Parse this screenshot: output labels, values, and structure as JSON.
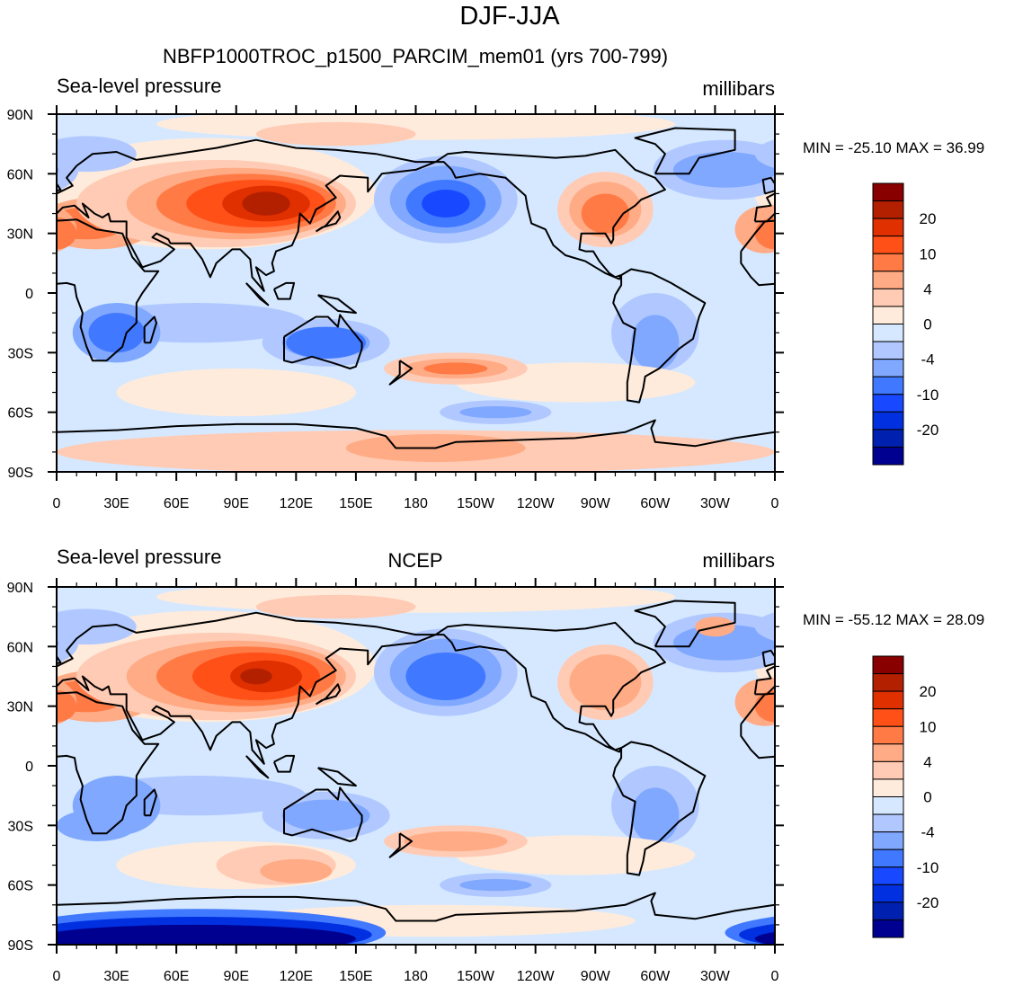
{
  "title": "DJF-JJA",
  "chart_data": {
    "type": "contour-map",
    "projection": "cylindrical-equidistant",
    "xlim": [
      0,
      360
    ],
    "ylim": [
      -90,
      90
    ],
    "x_ticks": [
      "0",
      "30E",
      "60E",
      "90E",
      "120E",
      "150E",
      "180",
      "150W",
      "120W",
      "90W",
      "60W",
      "30W",
      "0"
    ],
    "y_ticks": [
      "90N",
      "60N",
      "30N",
      "0",
      "30S",
      "60S",
      "90S"
    ],
    "contour_levels": [
      -25,
      -20,
      -15,
      -10,
      -6,
      -4,
      -2,
      0,
      2,
      4,
      6,
      10,
      15,
      20,
      25
    ],
    "colorbar_labels": [
      "20",
      "10",
      "4",
      "0",
      "-4",
      "-10",
      "-20"
    ],
    "colorbar_label_levels": [
      20,
      10,
      4,
      0,
      -4,
      -10,
      -20
    ],
    "colors_low_to_high": [
      "#000090",
      "#0020b0",
      "#0030e0",
      "#1848ff",
      "#4078ff",
      "#80a8ff",
      "#b0c8ff",
      "#d5e8ff",
      "#ffebdb",
      "#ffcbb4",
      "#ffab85",
      "#ff7a45",
      "#ff5018",
      "#e03000",
      "#b22000",
      "#880000"
    ],
    "panels": [
      {
        "left_title": "Sea-level pressure",
        "center_title": "NBFP1000TROC_p1500_PARCIM_mem01 (yrs 700-799)",
        "units": "millibars",
        "stats": "MIN = -25.10 MAX =  36.99",
        "min": -25.1,
        "max": 36.99
      },
      {
        "left_title": "Sea-level pressure",
        "center_title": "NCEP",
        "units": "millibars",
        "stats": "MIN = -55.12 MAX =  28.09",
        "min": -55.12,
        "max": 28.09
      }
    ]
  }
}
